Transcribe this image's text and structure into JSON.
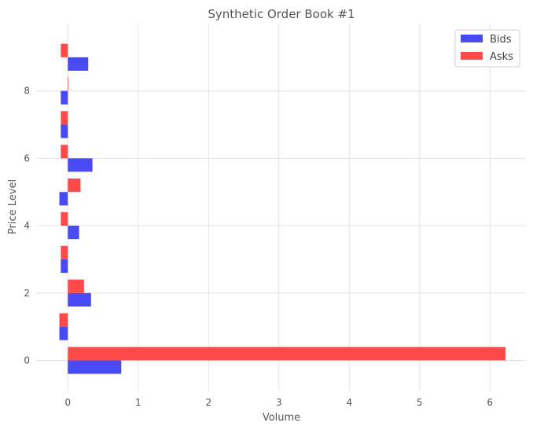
{
  "chart_data": {
    "type": "bar",
    "orientation": "horizontal",
    "title": "Synthetic Order Book #1",
    "xlabel": "Volume",
    "ylabel": "Price Level",
    "xlim": [
      -0.45,
      6.5
    ],
    "ylim": [
      -0.9,
      10.0
    ],
    "xticks": [
      0,
      1,
      2,
      3,
      4,
      5,
      6
    ],
    "yticks": [
      0,
      2,
      4,
      6,
      8
    ],
    "grid": true,
    "legend_position": "top-right",
    "categories": [
      0,
      1,
      2,
      3,
      4,
      5,
      6,
      7,
      8,
      9
    ],
    "series": [
      {
        "name": "Bids",
        "color": "#4a4af4",
        "values": [
          0.76,
          -0.12,
          0.33,
          -0.1,
          0.16,
          -0.12,
          0.35,
          -0.1,
          -0.1,
          0.29
        ]
      },
      {
        "name": "Asks",
        "color": "#ff4a4a",
        "values": [
          6.22,
          -0.12,
          0.23,
          -0.1,
          -0.1,
          0.18,
          -0.1,
          -0.1,
          0.01,
          -0.1
        ]
      }
    ]
  }
}
